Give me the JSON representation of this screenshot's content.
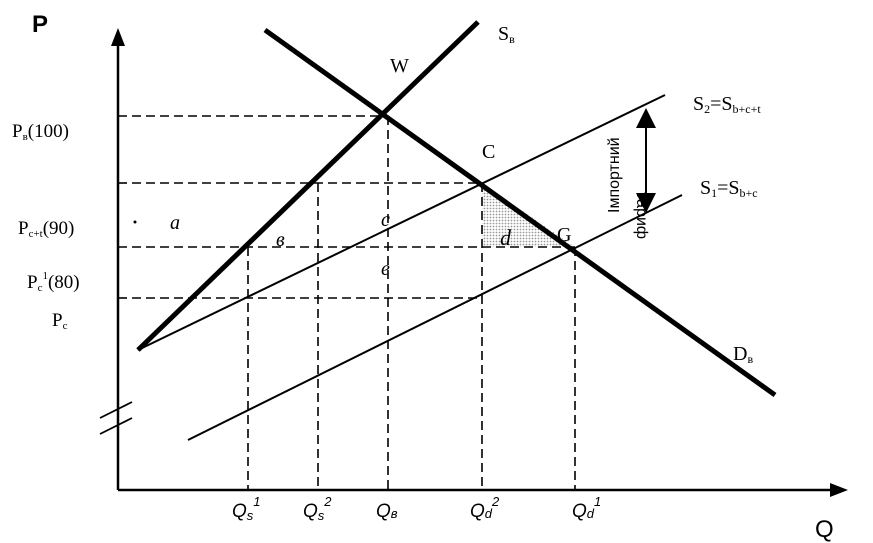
{
  "axes": {
    "y_label": "P",
    "x_label": "Q"
  },
  "curves": {
    "sb": {
      "label": "S",
      "sub": "в"
    },
    "db": {
      "label": "D",
      "sub": "в"
    },
    "s2": {
      "label": "S",
      "sub1": "2",
      "eq": "=S",
      "sub2": "b+c+t"
    },
    "s1": {
      "label": "S",
      "sub1": "1",
      "eq": "=S",
      "sub2": "b+c"
    }
  },
  "price_labels": [
    {
      "main": "P",
      "sub": "в",
      "sup": "",
      "value": "(100)"
    },
    {
      "main": "P",
      "sub": "c+t",
      "sup": "",
      "value": "(90)"
    },
    {
      "main": "P",
      "sub": "c",
      "sup": "1",
      "value": "(80)"
    },
    {
      "main": "P",
      "sub": "c",
      "sup": "",
      "value": ""
    }
  ],
  "quantity_labels": [
    {
      "main": "Q",
      "sub": "s",
      "sup": "1"
    },
    {
      "main": "Q",
      "sub": "s",
      "sup": "2"
    },
    {
      "main": "Q",
      "sub": "в",
      "sup": ""
    },
    {
      "main": "Q",
      "sub": "d",
      "sup": "2"
    },
    {
      "main": "Q",
      "sub": "d",
      "sup": "1"
    }
  ],
  "points": {
    "w": "W",
    "c": "C",
    "g": "G"
  },
  "areas": {
    "a": "a",
    "b": "в",
    "c": "c",
    "d": "d",
    "e": "e"
  },
  "tariff": {
    "line1": "Імпортний",
    "line2": "тариф"
  }
}
